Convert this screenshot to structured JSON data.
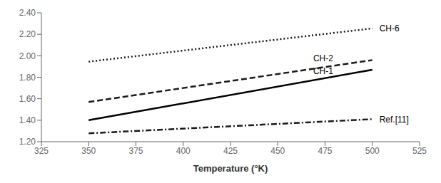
{
  "chart_data": {
    "type": "line",
    "x": [
      350,
      500
    ],
    "series": [
      {
        "name": "CH-6",
        "color": "#1a1a1a",
        "line_style": "dotted",
        "values": [
          1.945,
          2.255
        ]
      },
      {
        "name": "CH-2",
        "color": "#1a1a1a",
        "line_style": "dashed",
        "values": [
          1.57,
          1.96
        ]
      },
      {
        "name": "CH-1",
        "color": "#000000",
        "line_style": "solid",
        "values": [
          1.4,
          1.87
        ]
      },
      {
        "name": "Ref.[11]",
        "color": "#1a1a1a",
        "line_style": "dashdot",
        "values": [
          1.278,
          1.41
        ]
      }
    ],
    "annotations": [
      {
        "text": "CH-6",
        "x": 503,
        "y": 2.255
      },
      {
        "text": "CH-2",
        "x": 468,
        "y": 1.975
      },
      {
        "text": "CH-1",
        "x": 468,
        "y": 1.855
      },
      {
        "text": "Ref.[11]",
        "x": 503,
        "y": 1.41
      }
    ],
    "x_label": "Temperature (°K)",
    "xlim": [
      325,
      525
    ],
    "ylim": [
      1.2,
      2.4
    ],
    "xticks": [
      325,
      350,
      375,
      400,
      425,
      450,
      475,
      500,
      525
    ],
    "yticks": [
      {
        "value": 1.2,
        "label": "1.20"
      },
      {
        "value": 1.4,
        "label": "1.40"
      },
      {
        "value": 1.6,
        "label": "1.60"
      },
      {
        "value": 1.8,
        "label": "1.80"
      },
      {
        "value": 2.0,
        "label": "2.00"
      },
      {
        "value": 2.2,
        "label": "2.20"
      },
      {
        "value": 2.4,
        "label": "2.40"
      }
    ],
    "grid": false
  }
}
